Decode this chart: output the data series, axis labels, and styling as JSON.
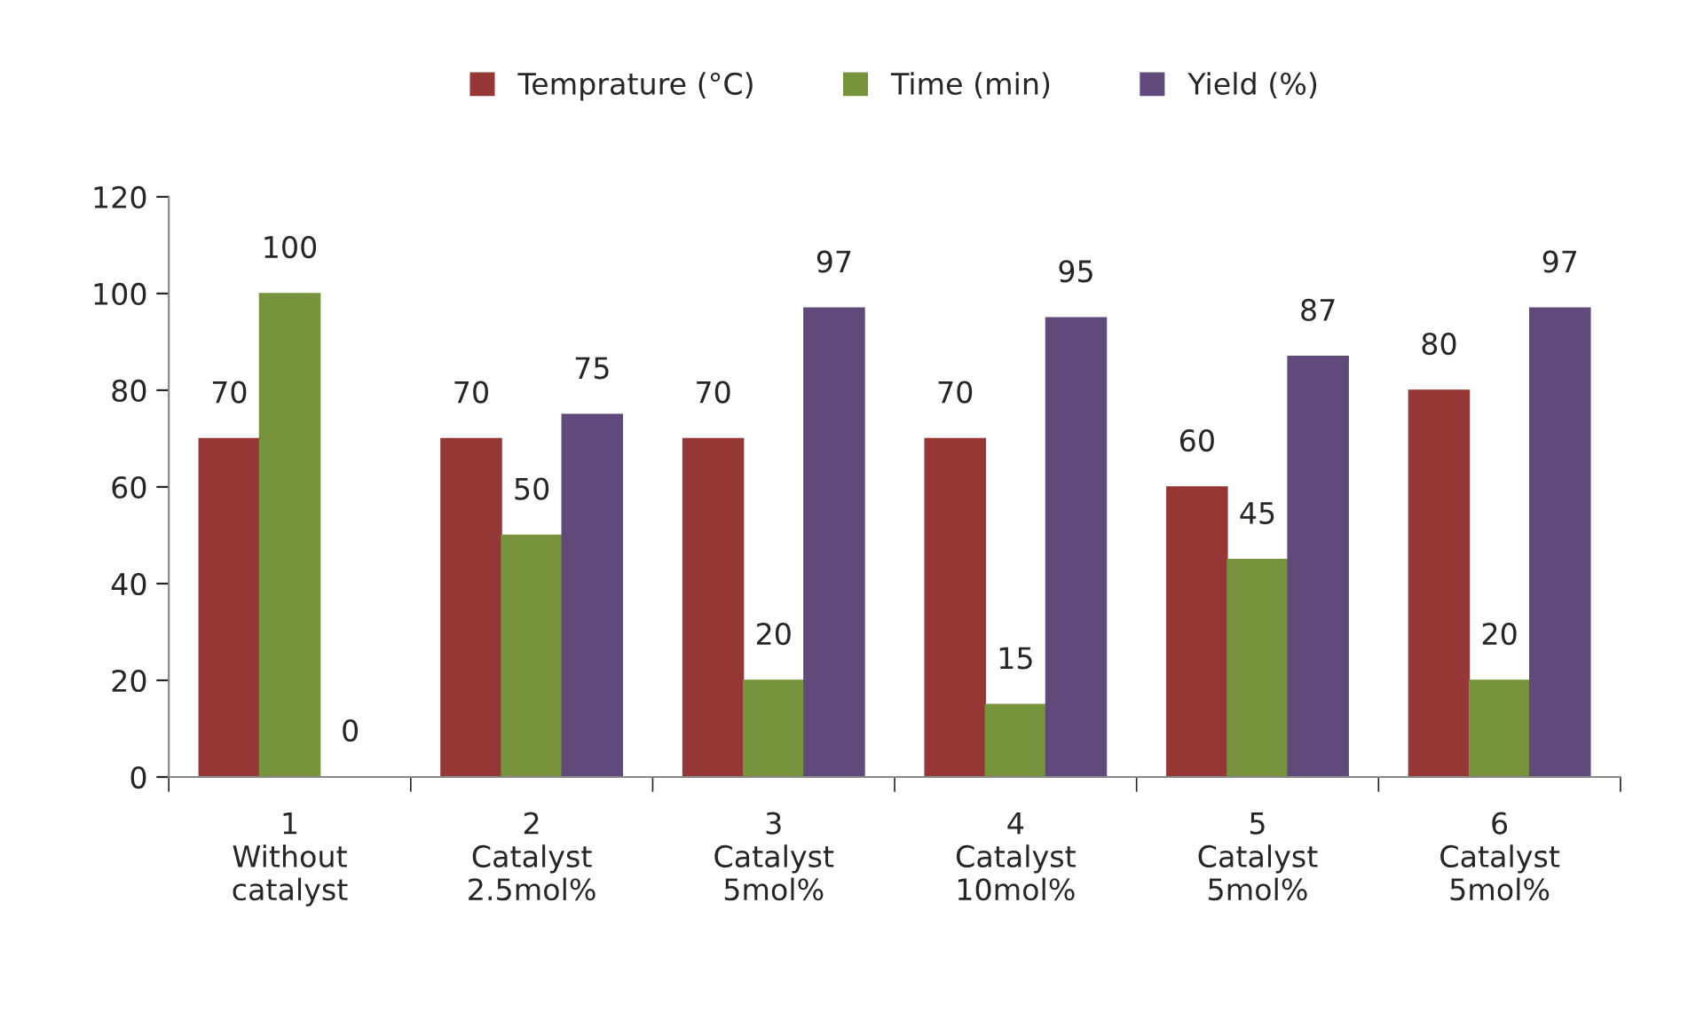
{
  "chart_data": {
    "type": "bar",
    "categories": [
      "1\nWithout\ncatalyst",
      "2\nCatalyst\n2.5mol%",
      "3\nCatalyst\n5mol%",
      "4\nCatalyst\n10mol%",
      "5\nCatalyst\n5mol%",
      "6\nCatalyst\n5mol%"
    ],
    "series": [
      {
        "name": "Temprature (°C)",
        "color": "#953735",
        "values": [
          70,
          70,
          70,
          70,
          60,
          80
        ]
      },
      {
        "name": "Time (min)",
        "color": "#77933c",
        "values": [
          100,
          50,
          20,
          15,
          45,
          20
        ]
      },
      {
        "name": "Yield (%)",
        "color": "#604a7b",
        "values": [
          0,
          75,
          97,
          95,
          87,
          97
        ]
      }
    ],
    "ylim": [
      0,
      120
    ],
    "yticks": [
      0,
      20,
      40,
      60,
      80,
      100,
      120
    ],
    "data_labels": true,
    "legend": "top",
    "grid": false
  }
}
